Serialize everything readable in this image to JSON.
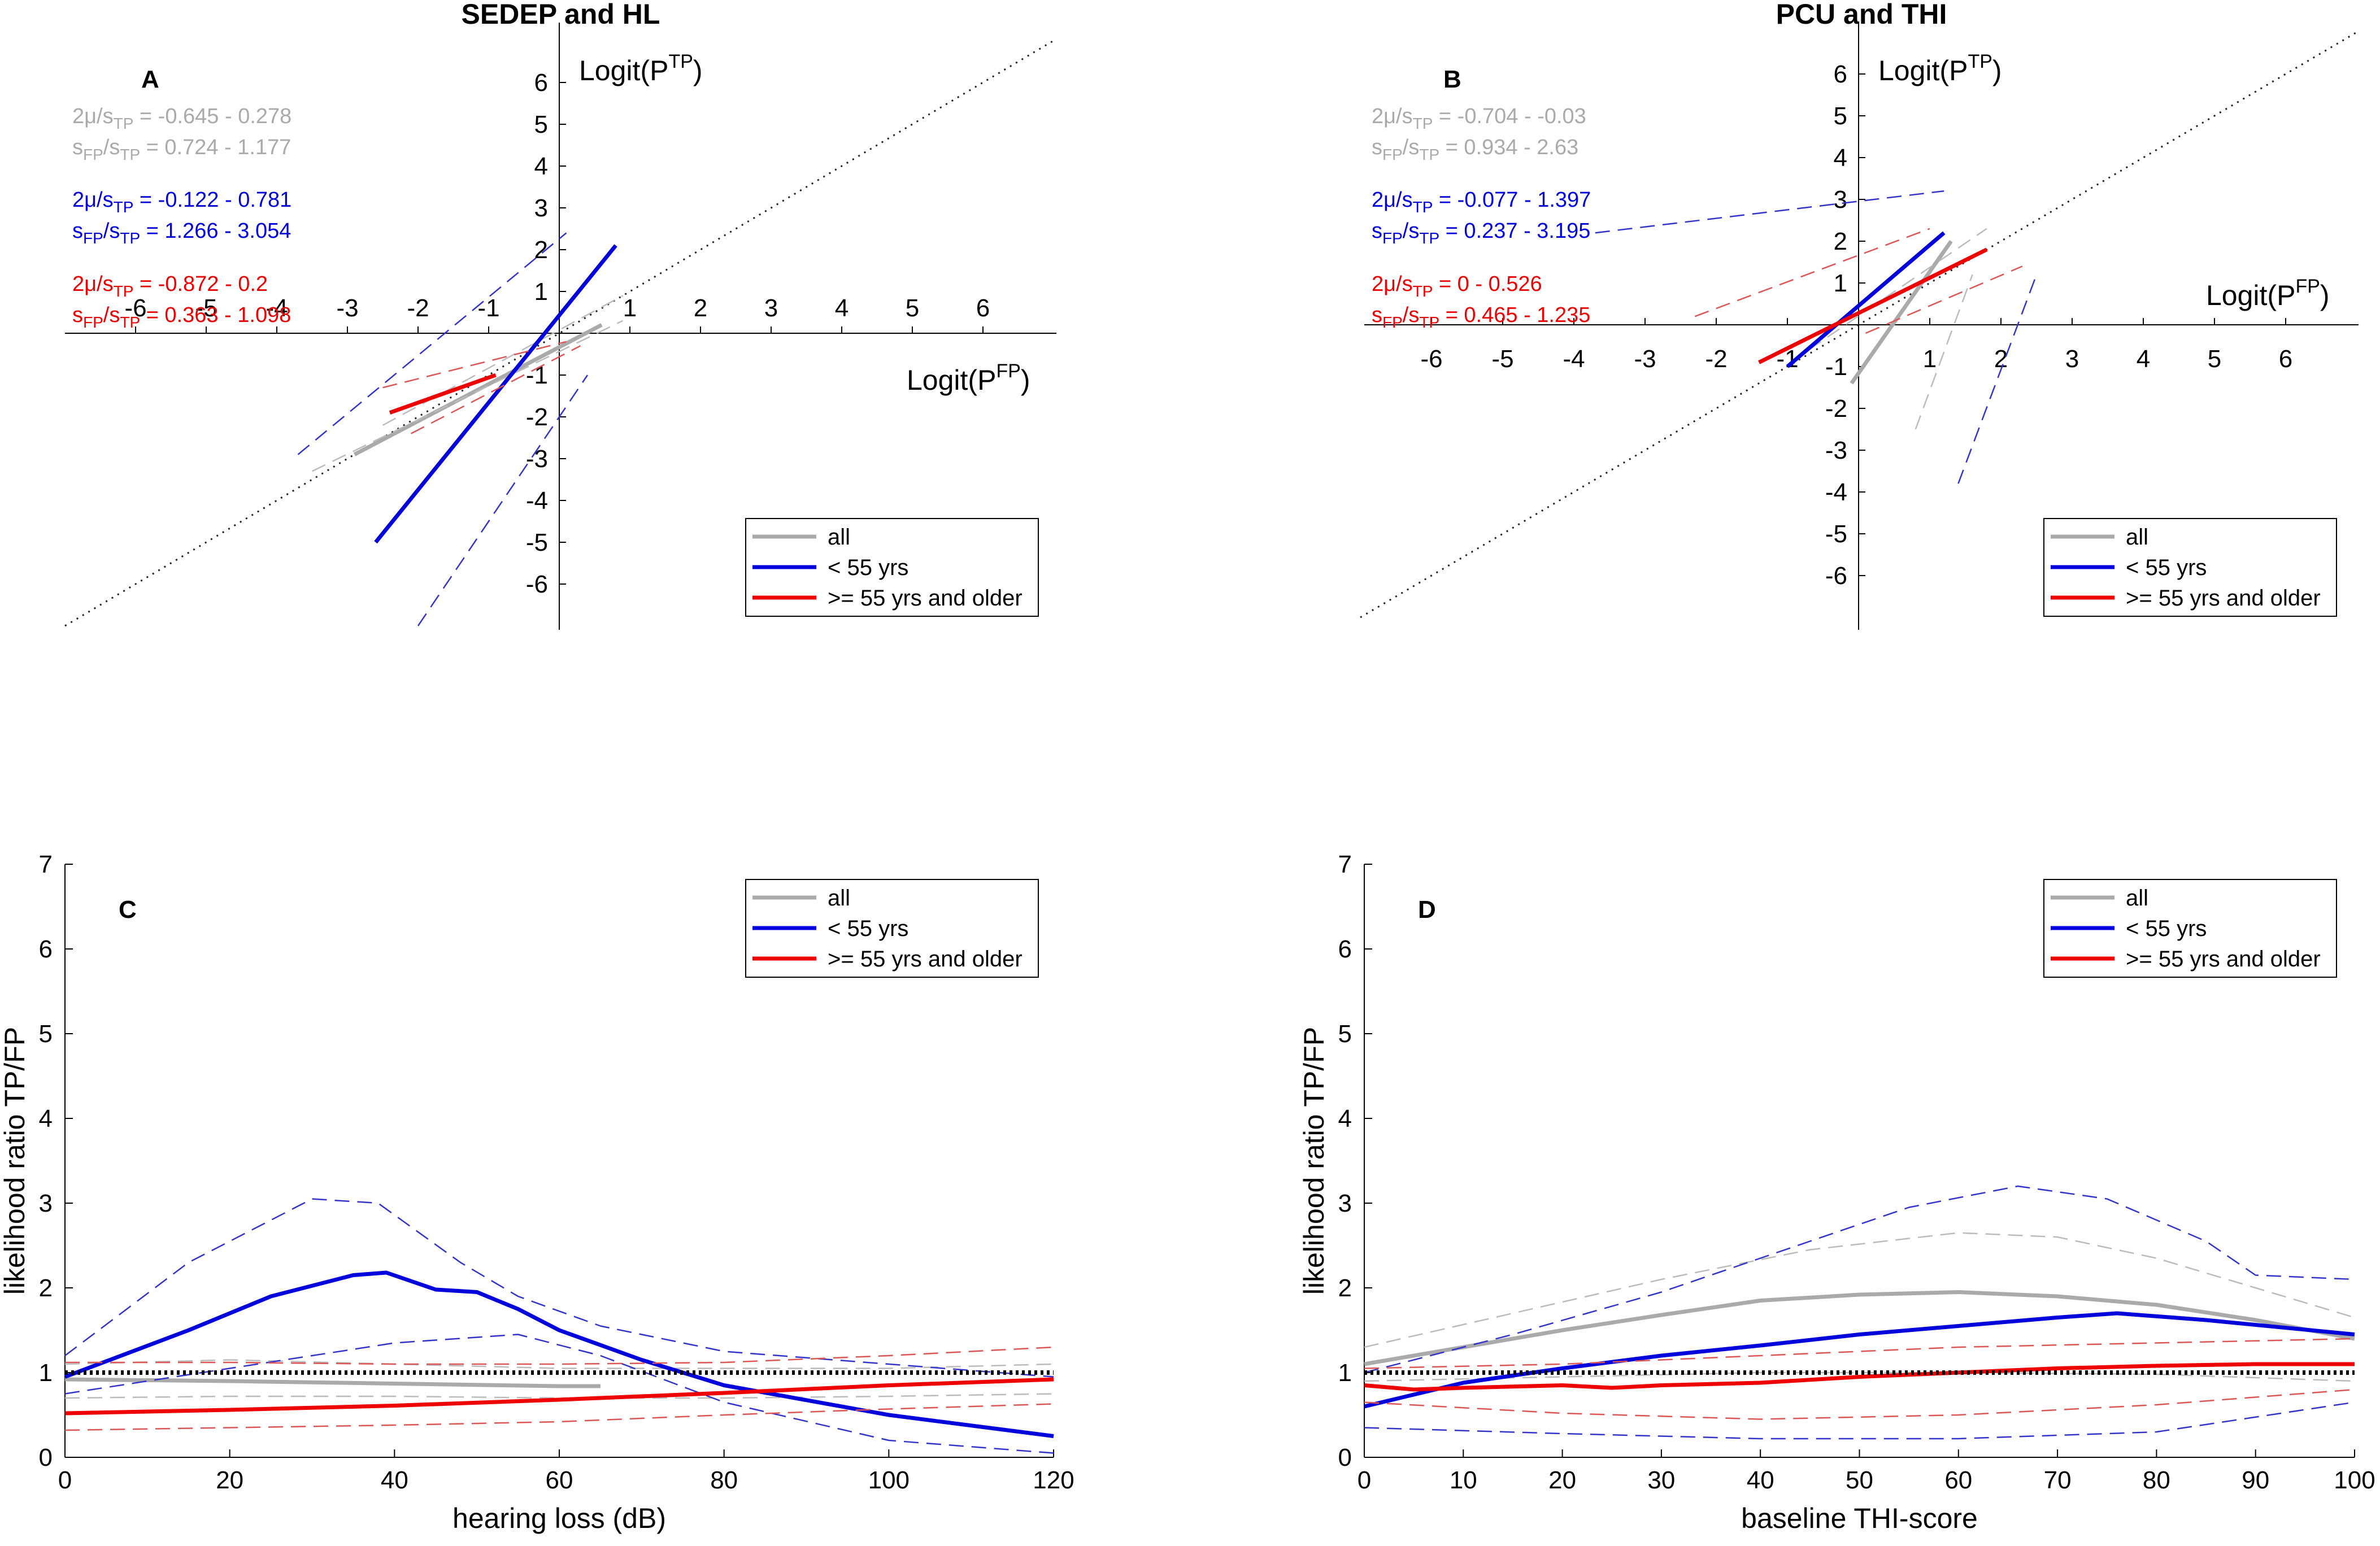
{
  "chart_data": [
    {
      "id": "A",
      "type": "line",
      "title": "SEDEP and HL",
      "panel_letter": "A",
      "xlabel_main": "Logit(P",
      "xlabel_sup": "FP",
      "xlabel_end": ")",
      "ylabel_main": "Logit(P",
      "ylabel_sup": "TP",
      "ylabel_end": ")",
      "xlim": [
        -7,
        7
      ],
      "ylim": [
        -7,
        7
      ],
      "x_ticks": [
        -6,
        -5,
        -4,
        -3,
        -2,
        -1,
        1,
        2,
        3,
        4,
        5,
        6
      ],
      "y_ticks": [
        -6,
        -5,
        -4,
        -3,
        -2,
        -1,
        1,
        2,
        3,
        4,
        5,
        6
      ],
      "reference_line": "dotted diagonal y = x",
      "annotations": [
        {
          "series": "all",
          "color": "#aaaaaa",
          "line1": "2μ/s",
          "line1_sub": "TP",
          "line1_val": " = -0.645 - 0.278",
          "line2": "s",
          "line2_sub": "FP",
          "line2_mid": "/s",
          "line2_sub2": "TP",
          "line2_val": " = 0.724 - 1.177"
        },
        {
          "series": "< 55 yrs",
          "color": "#0000dd",
          "line1": "2μ/s",
          "line1_sub": "TP",
          "line1_val": " = -0.122 - 0.781",
          "line2": "s",
          "line2_sub": "FP",
          "line2_mid": "/s",
          "line2_sub2": "TP",
          "line2_val": " = 1.266 - 3.054"
        },
        {
          "series": ">= 55 yrs and older",
          "color": "#ee0000",
          "line1": "2μ/s",
          "line1_sub": "TP",
          "line1_val": " = -0.872 - 0.2",
          "line2": "s",
          "line2_sub": "FP",
          "line2_mid": "/s",
          "line2_sub2": "TP",
          "line2_val": " = 0.363 - 1.098"
        }
      ],
      "legend": [
        "all",
        "< 55 yrs",
        ">= 55 yrs and older"
      ],
      "legend_position": "bottom-right",
      "series": [
        {
          "name": "all",
          "color": "#aaaaaa",
          "x": [
            -2.9,
            0.6
          ],
          "y": [
            -2.9,
            0.2
          ]
        },
        {
          "name": "all CI low",
          "color": "#bbbbbb",
          "dashed": true,
          "x": [
            -3.5,
            0.9
          ],
          "y": [
            -3.3,
            0.3
          ]
        },
        {
          "name": "all CI high",
          "color": "#bbbbbb",
          "dashed": true,
          "x": [
            -2.5,
            0.9
          ],
          "y": [
            -2.2,
            0.9
          ]
        },
        {
          "name": "< 55 yrs",
          "color": "#0000dd",
          "x": [
            -2.6,
            0.8
          ],
          "y": [
            -5.0,
            2.1
          ]
        },
        {
          "name": "< 55 yrs CI low",
          "color": "#3333cc",
          "dashed": true,
          "x": [
            -2.0,
            0.4
          ],
          "y": [
            -7.0,
            -1.0
          ]
        },
        {
          "name": "< 55 yrs CI high",
          "color": "#3333cc",
          "dashed": true,
          "x": [
            -3.7,
            0.1
          ],
          "y": [
            -2.9,
            2.4
          ]
        },
        {
          "name": ">= 55 yrs and older",
          "color": "#ee0000",
          "x": [
            -2.4,
            -0.9
          ],
          "y": [
            -1.9,
            -1.0
          ]
        },
        {
          "name": ">= 55 yrs CI low",
          "color": "#dd5555",
          "dashed": true,
          "x": [
            -2.1,
            0.3
          ],
          "y": [
            -2.4,
            -0.3
          ]
        },
        {
          "name": ">= 55 yrs CI high",
          "color": "#dd5555",
          "dashed": true,
          "x": [
            -2.5,
            0.1
          ],
          "y": [
            -1.3,
            -0.2
          ]
        }
      ]
    },
    {
      "id": "B",
      "type": "line",
      "title": "PCU and THI",
      "panel_letter": "B",
      "xlabel_main": "Logit(P",
      "xlabel_sup": "FP",
      "xlabel_end": ")",
      "ylabel_main": "Logit(P",
      "ylabel_sup": "TP",
      "ylabel_end": ")",
      "xlim": [
        -7,
        7
      ],
      "ylim": [
        -7,
        7
      ],
      "x_ticks": [
        -6,
        -5,
        -4,
        -3,
        -2,
        -1,
        1,
        2,
        3,
        4,
        5,
        6
      ],
      "y_ticks": [
        -6,
        -5,
        -4,
        -3,
        -2,
        -1,
        1,
        2,
        3,
        4,
        5,
        6
      ],
      "reference_line": "dotted diagonal y = x",
      "annotations": [
        {
          "series": "all",
          "color": "#aaaaaa",
          "line1": "2μ/s",
          "line1_sub": "TP",
          "line1_val": " = -0.704 - -0.03",
          "line2": "s",
          "line2_sub": "FP",
          "line2_mid": "/s",
          "line2_sub2": "TP",
          "line2_val": " = 0.934 - 2.63"
        },
        {
          "series": "< 55 yrs",
          "color": "#0000dd",
          "line1": "2μ/s",
          "line1_sub": "TP",
          "line1_val": " = -0.077 - 1.397",
          "line2": "s",
          "line2_sub": "FP",
          "line2_mid": "/s",
          "line2_sub2": "TP",
          "line2_val": " = 0.237 - 3.195"
        },
        {
          "series": ">= 55 yrs and older",
          "color": "#ee0000",
          "line1": "2μ/s",
          "line1_sub": "TP",
          "line1_val": " = 0 - 0.526",
          "line2": "s",
          "line2_sub": "FP",
          "line2_mid": "/s",
          "line2_sub2": "TP",
          "line2_val": " = 0.465 - 1.235"
        }
      ],
      "legend": [
        "all",
        "< 55 yrs",
        ">= 55 yrs and older"
      ],
      "legend_position": "bottom-right",
      "series": [
        {
          "name": "all",
          "color": "#aaaaaa",
          "x": [
            -0.1,
            1.3
          ],
          "y": [
            -1.4,
            2.0
          ]
        },
        {
          "name": "all CI low",
          "color": "#bbbbbb",
          "dashed": true,
          "x": [
            0.8,
            1.6
          ],
          "y": [
            -2.5,
            1.2
          ]
        },
        {
          "name": "all CI high",
          "color": "#bbbbbb",
          "dashed": true,
          "x": [
            -0.7,
            1.8
          ],
          "y": [
            -0.6,
            2.3
          ]
        },
        {
          "name": "< 55 yrs",
          "color": "#0000dd",
          "x": [
            -1.0,
            1.2
          ],
          "y": [
            -1.0,
            2.2
          ]
        },
        {
          "name": "< 55 yrs CI low",
          "color": "#3333cc",
          "dashed": true,
          "x": [
            1.4,
            2.5
          ],
          "y": [
            -3.8,
            1.2
          ]
        },
        {
          "name": "< 55 yrs CI high",
          "color": "#3333cc",
          "dashed": true,
          "x": [
            -3.7,
            1.2
          ],
          "y": [
            2.2,
            3.2
          ]
        },
        {
          "name": ">= 55 yrs and older",
          "color": "#ee0000",
          "x": [
            -1.4,
            1.8
          ],
          "y": [
            -0.9,
            1.8
          ]
        },
        {
          "name": ">= 55 yrs CI low",
          "color": "#dd5555",
          "dashed": true,
          "x": [
            0.1,
            2.3
          ],
          "y": [
            -0.2,
            1.4
          ]
        },
        {
          "name": ">= 55 yrs CI high",
          "color": "#dd5555",
          "dashed": true,
          "x": [
            -2.3,
            1.0
          ],
          "y": [
            0.2,
            2.3
          ]
        }
      ]
    },
    {
      "id": "C",
      "type": "line",
      "panel_letter": "C",
      "xlabel": "hearing loss (dB)",
      "ylabel": "likelihood ratio TP/FP",
      "xlim": [
        0,
        120
      ],
      "ylim": [
        0,
        7
      ],
      "x_ticks": [
        0,
        20,
        40,
        60,
        80,
        100,
        120
      ],
      "y_ticks": [
        0,
        1,
        2,
        3,
        4,
        5,
        6,
        7
      ],
      "reference_line": "dotted horizontal y = 1",
      "legend": [
        "all",
        "< 55 yrs",
        ">= 55 yrs and older"
      ],
      "legend_position": "top-right",
      "series": [
        {
          "name": "all",
          "color": "#aaaaaa",
          "x": [
            0,
            20,
            40,
            60,
            65
          ],
          "y": [
            0.92,
            0.9,
            0.87,
            0.84,
            0.84
          ]
        },
        {
          "name": "all CI low",
          "color": "#bbbbbb",
          "dashed": true,
          "x": [
            0,
            20,
            40,
            60,
            80,
            100,
            120
          ],
          "y": [
            0.7,
            0.72,
            0.72,
            0.7,
            0.7,
            0.72,
            0.75
          ]
        },
        {
          "name": "all CI high",
          "color": "#bbbbbb",
          "dashed": true,
          "x": [
            0,
            20,
            40,
            60,
            80,
            100,
            120
          ],
          "y": [
            1.1,
            1.15,
            1.1,
            1.05,
            1.05,
            1.05,
            1.1
          ]
        },
        {
          "name": "< 55 yrs",
          "color": "#0000dd",
          "x": [
            0,
            15,
            25,
            35,
            39,
            45,
            50,
            55,
            60,
            70,
            80,
            100,
            120
          ],
          "y": [
            0.95,
            1.5,
            1.9,
            2.15,
            2.18,
            1.98,
            1.95,
            1.75,
            1.5,
            1.15,
            0.85,
            0.5,
            0.25
          ]
        },
        {
          "name": "< 55 yrs CI low",
          "color": "#3333cc",
          "dashed": true,
          "x": [
            0,
            20,
            40,
            55,
            65,
            80,
            100,
            120
          ],
          "y": [
            0.75,
            1.05,
            1.35,
            1.45,
            1.2,
            0.65,
            0.2,
            0.05
          ]
        },
        {
          "name": "< 55 yrs CI high",
          "color": "#3333cc",
          "dashed": true,
          "x": [
            0,
            15,
            30,
            38,
            48,
            55,
            65,
            80,
            100,
            120
          ],
          "y": [
            1.2,
            2.3,
            3.05,
            3.0,
            2.3,
            1.9,
            1.55,
            1.25,
            1.1,
            0.95
          ]
        },
        {
          "name": ">= 55 yrs and older",
          "color": "#ee0000",
          "x": [
            0,
            20,
            40,
            60,
            80,
            100,
            120
          ],
          "y": [
            0.52,
            0.56,
            0.61,
            0.68,
            0.76,
            0.85,
            0.92
          ]
        },
        {
          "name": ">= 55 yrs CI low",
          "color": "#dd5555",
          "dashed": true,
          "x": [
            0,
            20,
            40,
            60,
            80,
            100,
            120
          ],
          "y": [
            0.32,
            0.35,
            0.38,
            0.42,
            0.5,
            0.57,
            0.63
          ]
        },
        {
          "name": ">= 55 yrs CI high",
          "color": "#dd5555",
          "dashed": true,
          "x": [
            0,
            20,
            40,
            60,
            80,
            100,
            120
          ],
          "y": [
            1.12,
            1.12,
            1.1,
            1.1,
            1.12,
            1.2,
            1.3
          ]
        }
      ]
    },
    {
      "id": "D",
      "type": "line",
      "panel_letter": "D",
      "xlabel": "baseline THI-score",
      "ylabel": "likelihood ratio TP/FP",
      "xlim": [
        0,
        100
      ],
      "ylim": [
        0,
        7
      ],
      "x_ticks": [
        0,
        10,
        20,
        30,
        40,
        50,
        60,
        70,
        80,
        90,
        100
      ],
      "y_ticks": [
        0,
        1,
        2,
        3,
        4,
        5,
        6,
        7
      ],
      "reference_line": "dotted horizontal y = 1",
      "legend": [
        "all",
        "< 55 yrs",
        ">= 55 yrs and older"
      ],
      "legend_position": "top-right",
      "series": [
        {
          "name": "all",
          "color": "#aaaaaa",
          "x": [
            0,
            10,
            20,
            30,
            40,
            50,
            60,
            70,
            80,
            90,
            100
          ],
          "y": [
            1.1,
            1.3,
            1.5,
            1.68,
            1.85,
            1.92,
            1.95,
            1.9,
            1.8,
            1.62,
            1.4
          ]
        },
        {
          "name": "all CI low",
          "color": "#bbbbbb",
          "dashed": true,
          "x": [
            0,
            20,
            40,
            60,
            80,
            100
          ],
          "y": [
            0.9,
            0.95,
            1.0,
            1.0,
            0.98,
            0.9
          ]
        },
        {
          "name": "all CI high",
          "color": "#bbbbbb",
          "dashed": true,
          "x": [
            0,
            15,
            30,
            45,
            60,
            70,
            80,
            90,
            100
          ],
          "y": [
            1.3,
            1.7,
            2.1,
            2.45,
            2.65,
            2.6,
            2.35,
            2.0,
            1.65
          ]
        },
        {
          "name": "< 55 yrs",
          "color": "#0000dd",
          "x": [
            0,
            10,
            20,
            30,
            40,
            50,
            60,
            70,
            76,
            85,
            100
          ],
          "y": [
            0.6,
            0.88,
            1.05,
            1.2,
            1.32,
            1.45,
            1.55,
            1.65,
            1.7,
            1.62,
            1.45
          ]
        },
        {
          "name": "< 55 yrs CI low",
          "color": "#3333cc",
          "dashed": true,
          "x": [
            0,
            20,
            40,
            60,
            80,
            100
          ],
          "y": [
            0.35,
            0.28,
            0.22,
            0.22,
            0.3,
            0.65
          ]
        },
        {
          "name": "< 55 yrs CI high",
          "color": "#3333cc",
          "dashed": true,
          "x": [
            0,
            15,
            30,
            45,
            55,
            66,
            75,
            85,
            90,
            100
          ],
          "y": [
            1.0,
            1.45,
            1.95,
            2.55,
            2.95,
            3.2,
            3.05,
            2.55,
            2.15,
            2.1
          ]
        },
        {
          "name": ">= 55 yrs and older",
          "color": "#ee0000",
          "x": [
            0,
            5,
            10,
            20,
            25,
            30,
            40,
            50,
            60,
            70,
            80,
            90,
            100
          ],
          "y": [
            0.85,
            0.8,
            0.82,
            0.85,
            0.82,
            0.85,
            0.88,
            0.95,
            1.0,
            1.05,
            1.08,
            1.1,
            1.1
          ]
        },
        {
          "name": ">= 55 yrs CI low",
          "color": "#dd5555",
          "dashed": true,
          "x": [
            0,
            20,
            40,
            60,
            80,
            100
          ],
          "y": [
            0.65,
            0.52,
            0.45,
            0.5,
            0.62,
            0.8
          ]
        },
        {
          "name": ">= 55 yrs CI high",
          "color": "#dd5555",
          "dashed": true,
          "x": [
            0,
            20,
            40,
            60,
            80,
            100
          ],
          "y": [
            1.05,
            1.1,
            1.2,
            1.3,
            1.35,
            1.4
          ]
        }
      ]
    }
  ]
}
